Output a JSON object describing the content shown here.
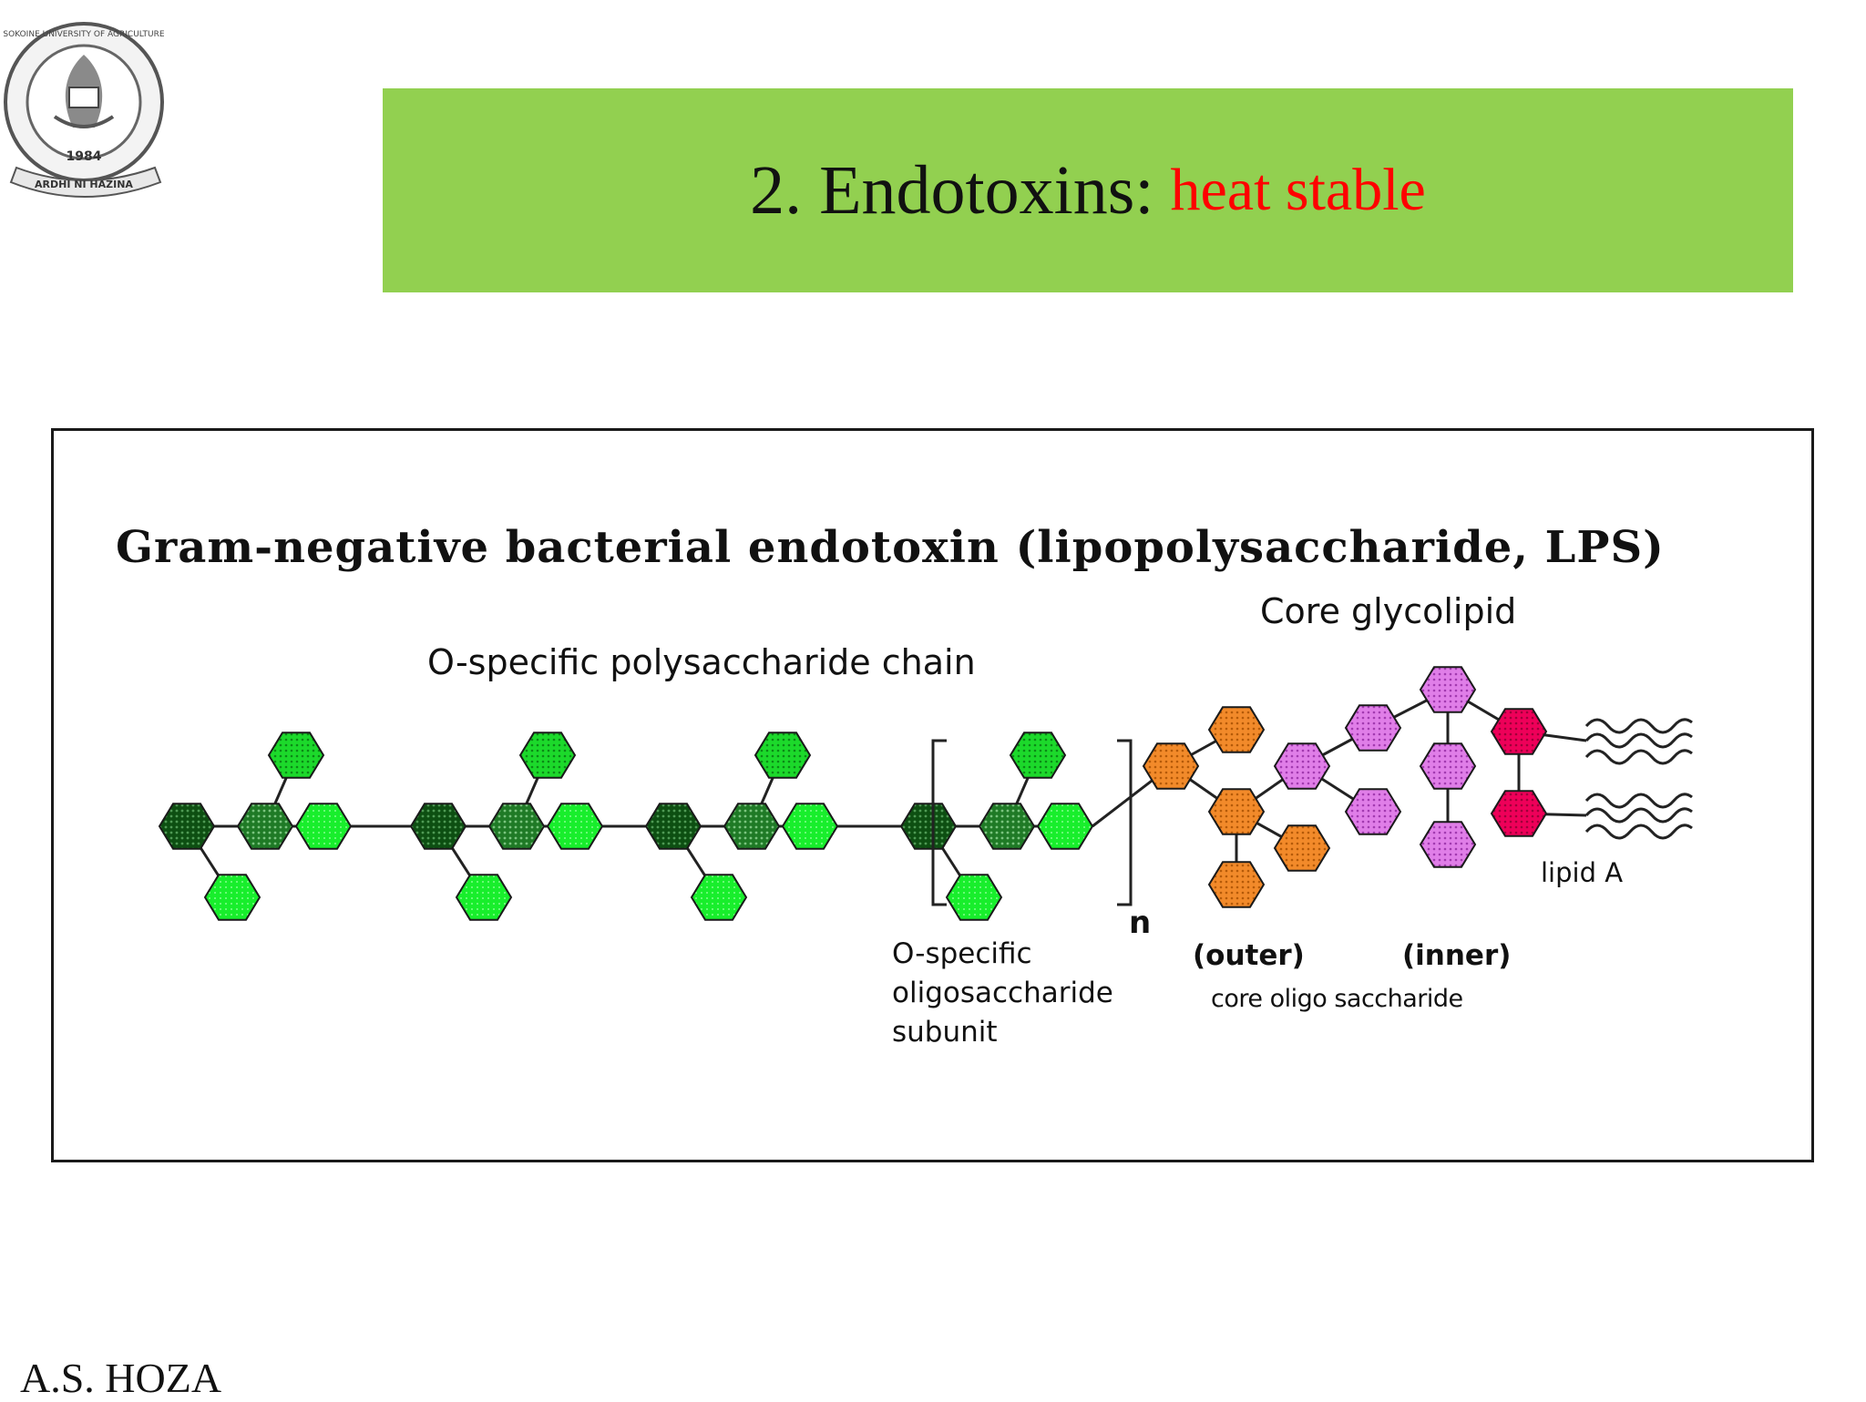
{
  "slide": {
    "title_main": "2. Endotoxins:",
    "title_accent": "heat stable",
    "title_bar_color": "#92d050",
    "title_accent_color": "#ff0000",
    "logo": {
      "text_arc": "SOKOINE UNIVERSITY OF AGRICULTURE",
      "year": "1984",
      "motto": "ARDHI NI HAZINA"
    },
    "author": "A.S. HOZA"
  },
  "figure": {
    "heading": "Gram-negative bacterial endotoxin (lipopolysaccharide, LPS)",
    "labels": {
      "o_chain": "O-specific polysaccharide chain",
      "core_glycolipid": "Core glycolipid",
      "repeat_n": "n",
      "subunit_line1": "O-specific",
      "subunit_line2": "oligosaccharide",
      "subunit_line3": "subunit",
      "outer": "(outer)",
      "inner": "(inner)",
      "core_oligo": "core oligo saccharide",
      "lipid_a": "lipid A"
    },
    "colors": {
      "dark_green": "#0d4f12",
      "mid_green": "#1f7a26",
      "light_green": "#1cd92b",
      "bright_green": "#18ee2c",
      "orange": "#f28a2a",
      "pink": "#e07ee8",
      "magenta": "#ee0059"
    },
    "icons": [
      "hexagon-sugar-unit",
      "fatty-acid-chain"
    ]
  }
}
